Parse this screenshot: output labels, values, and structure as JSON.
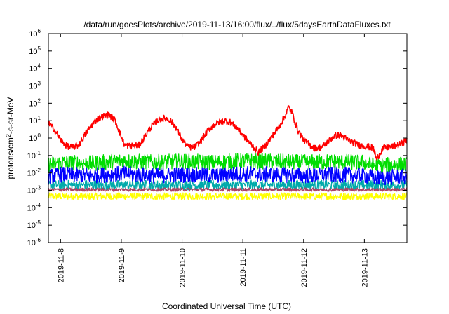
{
  "chart_data": {
    "type": "line",
    "title": "/data/run/goesPlots/archive/2019-11-13/16:00/flux/../flux/5daysEarthDataFluxes.txt",
    "xlabel": "Coordinated Universal Time (UTC)",
    "ylabel_base": "protons/cm",
    "ylabel_sup": "2",
    "ylabel_tail": "-s-sr-MeV",
    "yscale": "log",
    "ylim_exp": [
      -6,
      6
    ],
    "y_ticks": [
      {
        "base": "10",
        "exp": "-6"
      },
      {
        "base": "10",
        "exp": "-5"
      },
      {
        "base": "10",
        "exp": "-4"
      },
      {
        "base": "10",
        "exp": "-3"
      },
      {
        "base": "10",
        "exp": "-2"
      },
      {
        "base": "10",
        "exp": "-1"
      },
      {
        "base": "10",
        "exp": "0"
      },
      {
        "base": "10",
        "exp": "1"
      },
      {
        "base": "10",
        "exp": "2"
      },
      {
        "base": "10",
        "exp": "3"
      },
      {
        "base": "10",
        "exp": "4"
      },
      {
        "base": "10",
        "exp": "5"
      },
      {
        "base": "10",
        "exp": "6"
      }
    ],
    "x_range_days": [
      7.8,
      13.7
    ],
    "x_ticks": [
      {
        "label": "2019-11-8",
        "day": 8
      },
      {
        "label": "2019-11-9",
        "day": 9
      },
      {
        "label": "2019-11-10",
        "day": 10
      },
      {
        "label": "2019-11-11",
        "day": 11
      },
      {
        "label": "2019-11-12",
        "day": 12
      },
      {
        "label": "2019-11-13",
        "day": 13
      }
    ],
    "grid": false,
    "series": [
      {
        "color": "#ff0000",
        "points": [
          [
            7.8,
            7
          ],
          [
            7.9,
            3
          ],
          [
            8.0,
            0.8
          ],
          [
            8.1,
            0.35
          ],
          [
            8.2,
            0.3
          ],
          [
            8.3,
            0.4
          ],
          [
            8.4,
            1.5
          ],
          [
            8.5,
            5
          ],
          [
            8.6,
            12
          ],
          [
            8.7,
            18
          ],
          [
            8.8,
            22
          ],
          [
            8.9,
            10
          ],
          [
            9.0,
            1.2
          ],
          [
            9.05,
            0.4
          ],
          [
            9.15,
            0.35
          ],
          [
            9.3,
            0.4
          ],
          [
            9.4,
            1.5
          ],
          [
            9.5,
            5
          ],
          [
            9.6,
            10
          ],
          [
            9.7,
            14
          ],
          [
            9.8,
            11
          ],
          [
            9.9,
            4
          ],
          [
            10.0,
            0.8
          ],
          [
            10.1,
            0.3
          ],
          [
            10.2,
            0.3
          ],
          [
            10.3,
            0.6
          ],
          [
            10.4,
            2
          ],
          [
            10.5,
            5
          ],
          [
            10.6,
            8
          ],
          [
            10.7,
            10
          ],
          [
            10.8,
            8
          ],
          [
            10.9,
            4
          ],
          [
            11.0,
            1.5
          ],
          [
            11.1,
            0.6
          ],
          [
            11.2,
            0.25
          ],
          [
            11.25,
            0.15
          ],
          [
            11.35,
            0.3
          ],
          [
            11.5,
            1.5
          ],
          [
            11.6,
            5
          ],
          [
            11.7,
            20
          ],
          [
            11.75,
            60
          ],
          [
            11.8,
            35
          ],
          [
            11.9,
            3
          ],
          [
            12.0,
            0.8
          ],
          [
            12.1,
            0.4
          ],
          [
            12.2,
            0.25
          ],
          [
            12.3,
            0.3
          ],
          [
            12.4,
            0.6
          ],
          [
            12.5,
            1.3
          ],
          [
            12.6,
            1.5
          ],
          [
            12.7,
            0.9
          ],
          [
            12.8,
            0.6
          ],
          [
            12.9,
            0.4
          ],
          [
            13.0,
            0.35
          ],
          [
            13.1,
            0.3
          ],
          [
            13.15,
            0.25
          ],
          [
            13.2,
            0.06
          ],
          [
            13.3,
            0.25
          ],
          [
            13.4,
            0.3
          ],
          [
            13.5,
            0.35
          ],
          [
            13.6,
            0.45
          ],
          [
            13.7,
            0.8
          ]
        ]
      },
      {
        "color": "#00dd00",
        "points": [
          [
            7.8,
            0.03
          ],
          [
            8.0,
            0.04
          ],
          [
            8.5,
            0.035
          ],
          [
            9.0,
            0.05
          ],
          [
            9.5,
            0.04
          ],
          [
            10.0,
            0.045
          ],
          [
            10.5,
            0.04
          ],
          [
            11.0,
            0.05
          ],
          [
            11.5,
            0.045
          ],
          [
            12.0,
            0.04
          ],
          [
            12.5,
            0.045
          ],
          [
            13.0,
            0.04
          ],
          [
            13.1,
            0.03
          ],
          [
            13.2,
            0.025
          ],
          [
            13.5,
            0.03
          ],
          [
            13.7,
            0.03
          ]
        ]
      },
      {
        "color": "#0000ff",
        "points": [
          [
            7.8,
            0.006
          ],
          [
            8.0,
            0.008
          ],
          [
            8.5,
            0.007
          ],
          [
            9.0,
            0.009
          ],
          [
            9.5,
            0.007
          ],
          [
            10.0,
            0.008
          ],
          [
            10.5,
            0.007
          ],
          [
            11.0,
            0.009
          ],
          [
            11.5,
            0.008
          ],
          [
            12.0,
            0.007
          ],
          [
            12.5,
            0.008
          ],
          [
            13.0,
            0.007
          ],
          [
            13.2,
            0.005
          ],
          [
            13.5,
            0.006
          ],
          [
            13.7,
            0.006
          ]
        ]
      },
      {
        "color": "#00aaaa",
        "points": [
          [
            7.8,
            0.002
          ],
          [
            8.0,
            0.002
          ],
          [
            9.0,
            0.002
          ],
          [
            10.0,
            0.002
          ],
          [
            11.0,
            0.002
          ],
          [
            12.0,
            0.002
          ],
          [
            13.0,
            0.002
          ],
          [
            13.7,
            0.002
          ]
        ]
      },
      {
        "color": "#ffff00",
        "points": [
          [
            7.8,
            0.00045
          ],
          [
            8.0,
            0.00045
          ],
          [
            9.0,
            0.00045
          ],
          [
            10.0,
            0.00045
          ],
          [
            11.0,
            0.00045
          ],
          [
            12.0,
            0.00045
          ],
          [
            13.0,
            0.00045
          ],
          [
            13.7,
            0.00045
          ]
        ]
      },
      {
        "color": "#aa4466",
        "points": [
          [
            7.8,
            0.0011
          ],
          [
            8.0,
            0.0011
          ],
          [
            9.0,
            0.0011
          ],
          [
            10.0,
            0.0011
          ],
          [
            11.0,
            0.0011
          ],
          [
            12.0,
            0.0011
          ],
          [
            13.0,
            0.0011
          ],
          [
            13.7,
            0.0011
          ]
        ]
      }
    ]
  }
}
